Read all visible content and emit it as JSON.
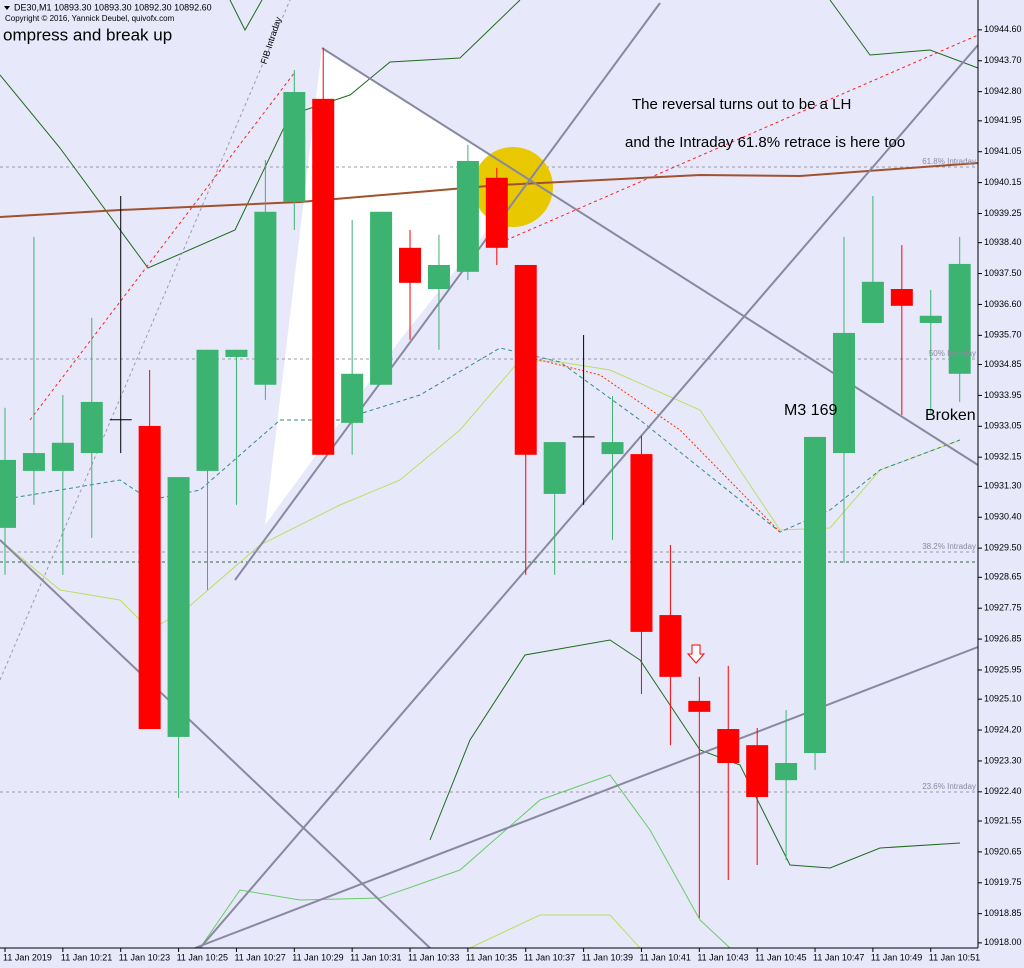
{
  "chart_data": {
    "type": "candlestick",
    "title": "DE30,M1  10893.30 10893.30 10892.30 10892.60",
    "subtitle": "Copyright © 2016, Yannick Deubel, quivofx.com",
    "annotations": [
      "ompress and break up",
      "FIB Intraday",
      "The reversal turns out to be a LH",
      "and the Intraday 61.8% retrace is here too",
      "M3 169",
      "Broken",
      "61.8% Intraday",
      "50% Intraday",
      "38.2% Intraday",
      "23.6% Intraday"
    ],
    "up_color": "#3cb371",
    "down_color": "#ff0000",
    "doji_color": "#000000",
    "categories": [
      "11 Jan 2019",
      null,
      "11 Jan 10:21",
      null,
      "11 Jan 10:23",
      null,
      "11 Jan 10:25",
      null,
      "11 Jan 10:27",
      null,
      "11 Jan 10:29",
      null,
      "11 Jan 10:31",
      null,
      "11 Jan 10:33",
      null,
      "11 Jan 10:35",
      null,
      "11 Jan 10:37",
      null,
      "11 Jan 10:39",
      null,
      "11 Jan 10:41",
      null,
      "11 Jan 10:43",
      null,
      "11 Jan 10:45",
      null,
      "11 Jan 10:47",
      null,
      "11 Jan 10:49",
      null,
      "11 Jan 10:51",
      null
    ],
    "open": [
      10930.09,
      10931.75,
      10931.75,
      10932.27,
      10933.24,
      10933.06,
      10924.0,
      10931.75,
      10935.07,
      10934.26,
      10939.59,
      10942.59,
      10933.15,
      10934.26,
      10938.25,
      10937.05,
      10937.55,
      10940.29,
      10937.75,
      10931.08,
      10932.74,
      10932.24,
      10932.24,
      10927.55,
      10925.05,
      10924.23,
      10923.76,
      10922.74,
      10923.53,
      10932.27,
      10936.06,
      10937.05,
      10936.06,
      10934.58
    ],
    "high": [
      10933.59,
      10938.57,
      10933.96,
      10936.21,
      10939.76,
      10934.69,
      10931.57,
      10935.28,
      10935.28,
      10940.81,
      10943.43,
      10944.08,
      10939.06,
      10939.3,
      10938.77,
      10938.63,
      10941.25,
      10940.58,
      10937.75,
      10932.59,
      10935.71,
      10933.93,
      10932.77,
      10929.59,
      10925.75,
      10926.07,
      10924.26,
      10924.78,
      10932.74,
      10938.57,
      10939.76,
      10938.33,
      10937.02,
      10938.57
    ],
    "low": [
      10928.72,
      10930.76,
      10928.72,
      10929.8,
      10932.27,
      10924.23,
      10922.22,
      10928.28,
      10930.76,
      10933.82,
      10938.77,
      10932.22,
      10932.22,
      10934.26,
      10935.57,
      10935.28,
      10937.31,
      10937.75,
      10928.72,
      10928.72,
      10930.76,
      10929.74,
      10925.25,
      10923.76,
      10918.72,
      10919.83,
      10920.27,
      10920.41,
      10923.04,
      10929.07,
      10936.06,
      10933.38,
      10933.38,
      10933.76
    ],
    "close": [
      10932.07,
      10932.27,
      10932.57,
      10933.76,
      10933.24,
      10924.23,
      10931.57,
      10935.28,
      10935.28,
      10939.3,
      10942.79,
      10932.22,
      10934.58,
      10939.3,
      10937.23,
      10937.75,
      10940.78,
      10938.25,
      10932.22,
      10932.59,
      10932.74,
      10932.59,
      10927.06,
      10925.75,
      10924.73,
      10923.24,
      10922.25,
      10923.24,
      10932.74,
      10935.77,
      10937.26,
      10936.56,
      10936.27,
      10937.78
    ],
    "ylim": [
      10917.85,
      10945.47
    ],
    "yticks": [
      {
        "value": 10944.6,
        "label": "10944.60"
      },
      {
        "value": 10943.7,
        "label": "10943.70"
      },
      {
        "value": 10942.8,
        "label": "10942.80"
      },
      {
        "value": 10941.95,
        "label": "10941.95"
      },
      {
        "value": 10941.05,
        "label": "10941.05"
      },
      {
        "value": 10940.15,
        "label": "10940.15"
      },
      {
        "value": 10939.25,
        "label": "10939.25"
      },
      {
        "value": 10938.4,
        "label": "10938.40"
      },
      {
        "value": 10937.5,
        "label": "10937.50"
      },
      {
        "value": 10936.6,
        "label": "10936.60"
      },
      {
        "value": 10935.7,
        "label": "10935.70"
      },
      {
        "value": 10934.85,
        "label": "10934.85"
      },
      {
        "value": 10933.95,
        "label": "10933.95"
      },
      {
        "value": 10933.05,
        "label": "10933.05"
      },
      {
        "value": 10932.15,
        "label": "10932.15"
      },
      {
        "value": 10931.3,
        "label": "10931.30"
      },
      {
        "value": 10930.4,
        "label": "10930.40"
      },
      {
        "value": 10929.5,
        "label": "10929.50"
      },
      {
        "value": 10928.65,
        "label": "10928.65"
      },
      {
        "value": 10927.75,
        "label": "10927.75"
      },
      {
        "value": 10926.85,
        "label": "10926.85"
      },
      {
        "value": 10925.95,
        "label": "10925.95"
      },
      {
        "value": 10925.1,
        "label": "10925.10"
      },
      {
        "value": 10924.2,
        "label": "10924.20"
      },
      {
        "value": 10923.3,
        "label": "10923.30"
      },
      {
        "value": 10922.4,
        "label": "10922.40"
      },
      {
        "value": 10921.55,
        "label": "10921.55"
      },
      {
        "value": 10920.65,
        "label": "10920.65"
      },
      {
        "value": 10919.75,
        "label": "10919.75"
      },
      {
        "value": 10918.85,
        "label": "10918.85"
      },
      {
        "value": 10918.0,
        "label": "10918.00"
      }
    ]
  }
}
